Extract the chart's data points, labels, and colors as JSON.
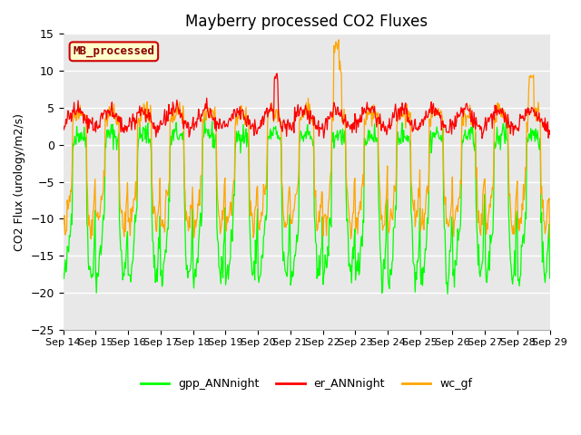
{
  "title": "Mayberry processed CO2 Fluxes",
  "ylabel": "CO2 Flux (urology/m2/s)",
  "xlabel": "",
  "ylim": [
    -25,
    15
  ],
  "yticks": [
    -25,
    -20,
    -15,
    -10,
    -5,
    0,
    5,
    10,
    15
  ],
  "xtick_labels": [
    "Sep 14",
    "Sep 15",
    "Sep 16",
    "Sep 17",
    "Sep 18",
    "Sep 19",
    "Sep 20",
    "Sep 21",
    "Sep 22",
    "Sep 23",
    "Sep 24",
    "Sep 25",
    "Sep 26",
    "Sep 27",
    "Sep 28",
    "Sep 29"
  ],
  "legend_entries": [
    "gpp_ANNnight",
    "er_ANNnight",
    "wc_gf"
  ],
  "legend_colors": [
    "#00ff00",
    "#ff0000",
    "#ffa500"
  ],
  "annotation_text": "MB_processed",
  "annotation_bg": "#ffffcc",
  "annotation_fg": "#880000",
  "annotation_edge": "#cc0000",
  "bg_color": "#e8e8e8",
  "fig_bg": "#ffffff",
  "n_days": 15,
  "points_per_day": 48
}
